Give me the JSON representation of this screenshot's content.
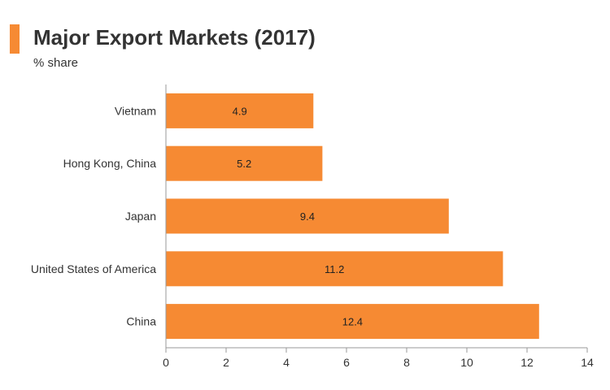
{
  "header": {
    "title": "Major Export Markets (2017)",
    "subtitle": "% share",
    "accent_color": "#f68a33"
  },
  "chart_data": {
    "type": "bar",
    "orientation": "horizontal",
    "title": "Major Export Markets (2017)",
    "subtitle": "% share",
    "categories": [
      "Vietnam",
      "Hong Kong, China",
      "Japan",
      "United States of America",
      "China"
    ],
    "values": [
      4.9,
      5.2,
      9.4,
      11.2,
      12.4
    ],
    "data_labels": [
      "4.9",
      "5.2",
      "9.4",
      "11.2",
      "12.4"
    ],
    "xlabel": "",
    "ylabel": "",
    "xlim": [
      0,
      14
    ],
    "x_ticks": [
      0,
      2,
      4,
      6,
      8,
      10,
      12,
      14
    ],
    "grid": false,
    "legend": "none",
    "bar_color": "#f68a33",
    "axis_color": "#999999"
  }
}
